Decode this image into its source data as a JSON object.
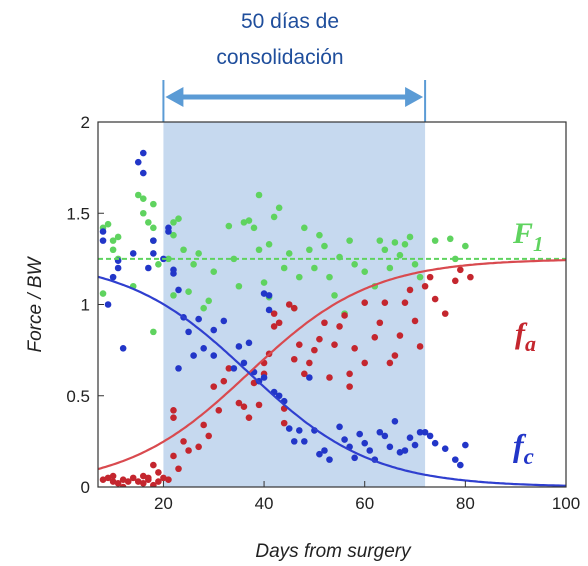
{
  "chart_data": {
    "type": "scatter",
    "xlabel": "Days from surgery",
    "ylabel": "Force / BW",
    "xlim": [
      7,
      100
    ],
    "ylim": [
      0,
      2
    ],
    "xticks": [
      20,
      40,
      60,
      80,
      100
    ],
    "yticks": [
      0,
      0.5,
      1,
      1.5,
      2
    ],
    "grid": false,
    "shaded_region": {
      "x": [
        20,
        72
      ],
      "color": "#c6d9ef"
    },
    "annotation": {
      "text_line1": "50 días de",
      "text_line2": "consolidación",
      "arrow_from": 20,
      "arrow_to": 72,
      "color": "#5b9bd5"
    },
    "series": [
      {
        "name": "F1",
        "label_main": "F",
        "label_sub": "1",
        "color": "#5fd35f",
        "points": [
          [
            8,
            1.42
          ],
          [
            8,
            1.06
          ],
          [
            9,
            1.44
          ],
          [
            10,
            1.3
          ],
          [
            10,
            1.35
          ],
          [
            11,
            1.37
          ],
          [
            11,
            1.25
          ],
          [
            14,
            1.1
          ],
          [
            15,
            1.6
          ],
          [
            16,
            1.5
          ],
          [
            16,
            1.58
          ],
          [
            17,
            1.45
          ],
          [
            18,
            1.42
          ],
          [
            18,
            1.55
          ],
          [
            18,
            1.35
          ],
          [
            19,
            1.22
          ],
          [
            18,
            0.85
          ],
          [
            21,
            1.25
          ],
          [
            22,
            1.45
          ],
          [
            22,
            1.38
          ],
          [
            22,
            1.05
          ],
          [
            23,
            1.47
          ],
          [
            24,
            1.3
          ],
          [
            25,
            1.07
          ],
          [
            26,
            1.22
          ],
          [
            27,
            1.28
          ],
          [
            28,
            0.98
          ],
          [
            29,
            1.02
          ],
          [
            30,
            1.18
          ],
          [
            33,
            1.43
          ],
          [
            34,
            1.25
          ],
          [
            35,
            1.1
          ],
          [
            36,
            1.45
          ],
          [
            37,
            1.46
          ],
          [
            38,
            1.42
          ],
          [
            39,
            1.6
          ],
          [
            39,
            1.3
          ],
          [
            40,
            1.12
          ],
          [
            41,
            1.33
          ],
          [
            41,
            1.04
          ],
          [
            42,
            1.48
          ],
          [
            43,
            1.53
          ],
          [
            44,
            1.2
          ],
          [
            45,
            1.28
          ],
          [
            46,
            0.98
          ],
          [
            47,
            1.15
          ],
          [
            48,
            1.42
          ],
          [
            49,
            1.3
          ],
          [
            50,
            1.2
          ],
          [
            51,
            1.38
          ],
          [
            52,
            1.32
          ],
          [
            53,
            1.15
          ],
          [
            54,
            1.05
          ],
          [
            55,
            1.26
          ],
          [
            56,
            0.95
          ],
          [
            57,
            1.35
          ],
          [
            58,
            1.22
          ],
          [
            60,
            1.18
          ],
          [
            62,
            1.1
          ],
          [
            63,
            1.35
          ],
          [
            64,
            1.3
          ],
          [
            65,
            1.2
          ],
          [
            66,
            1.34
          ],
          [
            67,
            1.27
          ],
          [
            68,
            1.33
          ],
          [
            69,
            1.37
          ],
          [
            70,
            1.22
          ],
          [
            71,
            1.15
          ],
          [
            74,
            1.35
          ],
          [
            77,
            1.36
          ],
          [
            78,
            1.25
          ],
          [
            80,
            1.32
          ]
        ]
      },
      {
        "name": "fa",
        "label_main": "f",
        "label_sub": "a",
        "color": "#c4262e",
        "points": [
          [
            8,
            0.04
          ],
          [
            9,
            0.05
          ],
          [
            10,
            0.03
          ],
          [
            10,
            0.06
          ],
          [
            11,
            0.02
          ],
          [
            12,
            0.0
          ],
          [
            12,
            0.04
          ],
          [
            13,
            0.03
          ],
          [
            14,
            0.05
          ],
          [
            15,
            0.03
          ],
          [
            16,
            0.06
          ],
          [
            16,
            0.02
          ],
          [
            17,
            0.05
          ],
          [
            17,
            0.04
          ],
          [
            18,
            0.12
          ],
          [
            18,
            0.01
          ],
          [
            19,
            0.08
          ],
          [
            19,
            0.03
          ],
          [
            20,
            0.05
          ],
          [
            21,
            0.04
          ],
          [
            22,
            0.38
          ],
          [
            22,
            0.42
          ],
          [
            22,
            0.17
          ],
          [
            23,
            0.1
          ],
          [
            24,
            0.25
          ],
          [
            25,
            0.2
          ],
          [
            27,
            0.22
          ],
          [
            28,
            0.34
          ],
          [
            29,
            0.28
          ],
          [
            30,
            0.55
          ],
          [
            31,
            0.42
          ],
          [
            32,
            0.58
          ],
          [
            33,
            0.65
          ],
          [
            35,
            0.46
          ],
          [
            36,
            0.44
          ],
          [
            37,
            0.38
          ],
          [
            38,
            0.57
          ],
          [
            39,
            0.45
          ],
          [
            40,
            0.68
          ],
          [
            40,
            0.62
          ],
          [
            41,
            0.73
          ],
          [
            42,
            0.88
          ],
          [
            42,
            0.95
          ],
          [
            43,
            0.9
          ],
          [
            44,
            0.43
          ],
          [
            44,
            0.35
          ],
          [
            45,
            1.0
          ],
          [
            46,
            0.98
          ],
          [
            46,
            0.7
          ],
          [
            47,
            0.78
          ],
          [
            48,
            0.62
          ],
          [
            49,
            0.68
          ],
          [
            50,
            0.75
          ],
          [
            51,
            0.81
          ],
          [
            52,
            0.9
          ],
          [
            53,
            0.6
          ],
          [
            54,
            0.78
          ],
          [
            55,
            0.88
          ],
          [
            56,
            0.94
          ],
          [
            57,
            0.62
          ],
          [
            57,
            0.55
          ],
          [
            58,
            0.76
          ],
          [
            60,
            1.01
          ],
          [
            60,
            0.68
          ],
          [
            62,
            0.82
          ],
          [
            63,
            0.9
          ],
          [
            64,
            1.01
          ],
          [
            65,
            0.68
          ],
          [
            66,
            0.72
          ],
          [
            67,
            0.83
          ],
          [
            68,
            1.01
          ],
          [
            69,
            1.08
          ],
          [
            70,
            0.91
          ],
          [
            71,
            0.77
          ],
          [
            72,
            1.1
          ],
          [
            73,
            1.15
          ],
          [
            74,
            1.03
          ],
          [
            76,
            0.95
          ],
          [
            78,
            1.13
          ],
          [
            79,
            1.19
          ],
          [
            81,
            1.15
          ]
        ]
      },
      {
        "name": "fc",
        "label_main": "f",
        "label_sub": "c",
        "color": "#2236c8",
        "points": [
          [
            8,
            1.4
          ],
          [
            8,
            1.35
          ],
          [
            9,
            1.0
          ],
          [
            10,
            1.15
          ],
          [
            11,
            1.2
          ],
          [
            11,
            1.24
          ],
          [
            12,
            0.76
          ],
          [
            14,
            1.28
          ],
          [
            15,
            1.78
          ],
          [
            16,
            1.83
          ],
          [
            16,
            1.72
          ],
          [
            17,
            1.2
          ],
          [
            18,
            1.35
          ],
          [
            18,
            1.28
          ],
          [
            20,
            1.25
          ],
          [
            21,
            1.4
          ],
          [
            21,
            1.42
          ],
          [
            22,
            1.19
          ],
          [
            22,
            1.17
          ],
          [
            23,
            1.08
          ],
          [
            23,
            0.65
          ],
          [
            24,
            0.93
          ],
          [
            25,
            0.85
          ],
          [
            26,
            0.72
          ],
          [
            27,
            0.92
          ],
          [
            28,
            0.76
          ],
          [
            30,
            0.86
          ],
          [
            30,
            0.72
          ],
          [
            32,
            0.91
          ],
          [
            34,
            0.65
          ],
          [
            35,
            0.77
          ],
          [
            36,
            0.68
          ],
          [
            37,
            0.79
          ],
          [
            38,
            0.63
          ],
          [
            39,
            0.58
          ],
          [
            40,
            0.6
          ],
          [
            40,
            1.06
          ],
          [
            41,
            1.05
          ],
          [
            41,
            0.97
          ],
          [
            42,
            0.52
          ],
          [
            43,
            0.5
          ],
          [
            44,
            0.47
          ],
          [
            45,
            0.32
          ],
          [
            46,
            0.25
          ],
          [
            47,
            0.31
          ],
          [
            48,
            0.25
          ],
          [
            49,
            0.6
          ],
          [
            50,
            0.31
          ],
          [
            51,
            0.18
          ],
          [
            52,
            0.2
          ],
          [
            53,
            0.15
          ],
          [
            55,
            0.33
          ],
          [
            56,
            0.26
          ],
          [
            57,
            0.22
          ],
          [
            58,
            0.16
          ],
          [
            59,
            0.29
          ],
          [
            60,
            0.24
          ],
          [
            61,
            0.2
          ],
          [
            62,
            0.15
          ],
          [
            63,
            0.3
          ],
          [
            64,
            0.28
          ],
          [
            65,
            0.22
          ],
          [
            66,
            0.36
          ],
          [
            67,
            0.19
          ],
          [
            68,
            0.2
          ],
          [
            69,
            0.27
          ],
          [
            70,
            0.23
          ],
          [
            71,
            0.3
          ],
          [
            72,
            0.3
          ],
          [
            73,
            0.28
          ],
          [
            74,
            0.24
          ],
          [
            76,
            0.21
          ],
          [
            78,
            0.15
          ],
          [
            79,
            0.12
          ],
          [
            80,
            0.23
          ]
        ]
      }
    ],
    "fits": [
      {
        "series": "F1",
        "kind": "constant",
        "value": 1.25,
        "dashed": true,
        "color": "#5fd35f"
      },
      {
        "series": "fa",
        "kind": "sigmoid",
        "max": 1.25,
        "x0": 37,
        "k": 0.082,
        "color": "#d94a4f"
      },
      {
        "series": "fc",
        "kind": "sigmoid",
        "max": 1.25,
        "x0": 37,
        "k": 0.082,
        "inverse": true,
        "color": "#2f3fcf"
      }
    ]
  }
}
